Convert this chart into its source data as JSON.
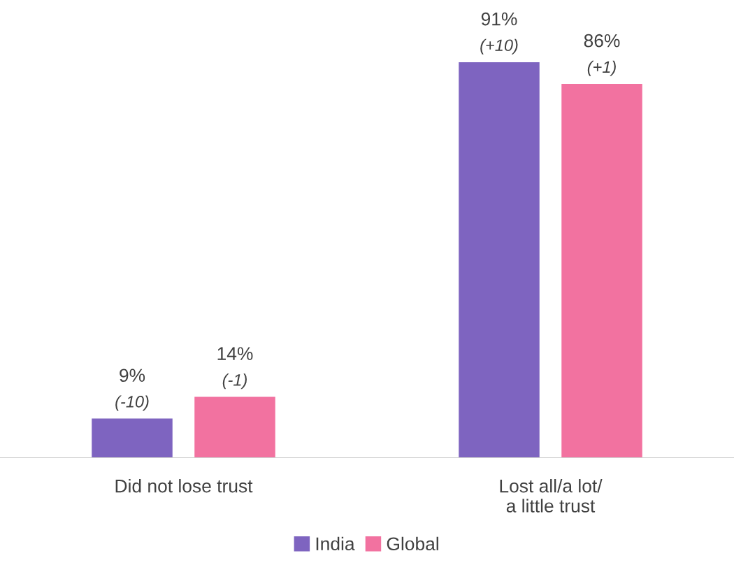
{
  "chart_data": {
    "type": "bar",
    "categories": [
      "Did not lose trust",
      "Lost all/a lot/\na little trust"
    ],
    "series": [
      {
        "name": "India",
        "color": "#7e64c0",
        "values": [
          9,
          91
        ],
        "value_labels": [
          "9%",
          "91%"
        ]
      },
      {
        "name": "Global",
        "color": "#f272a0",
        "values": [
          14,
          86
        ],
        "value_labels": [
          "14%",
          "86%"
        ]
      }
    ],
    "annotations": [
      "(-10)",
      "(-1)",
      "(+10)",
      "(+1)"
    ],
    "legend": "bottom",
    "grid": false
  }
}
